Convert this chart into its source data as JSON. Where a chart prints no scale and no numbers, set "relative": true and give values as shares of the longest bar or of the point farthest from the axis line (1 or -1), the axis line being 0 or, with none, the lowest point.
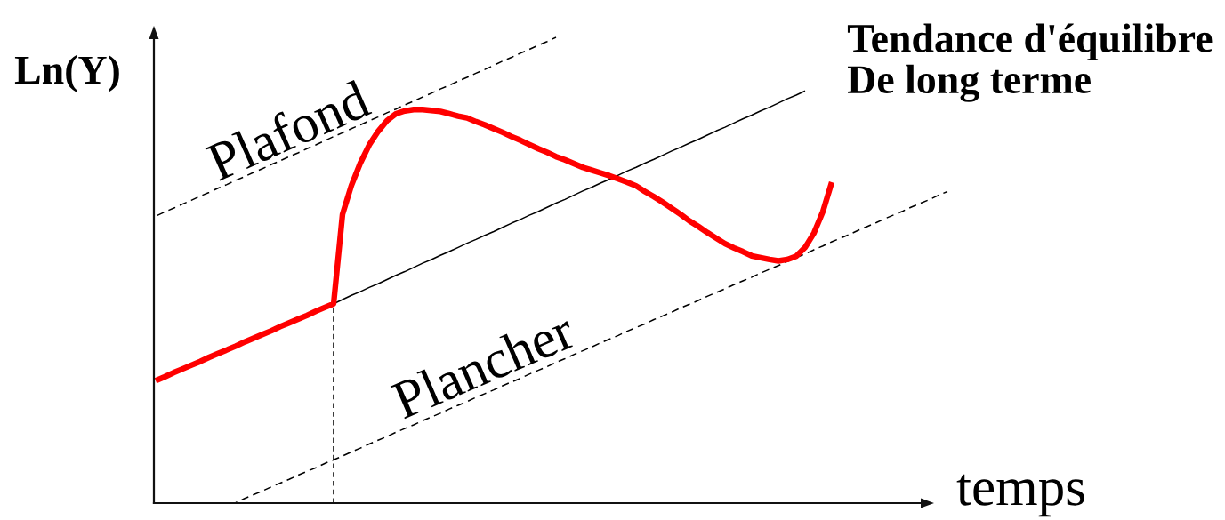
{
  "chart_data": {
    "type": "line",
    "relative": true,
    "xlabel": "temps",
    "ylabel": "Ln(Y)",
    "categories": [
      null,
      null,
      null,
      null,
      null,
      null,
      null,
      null,
      null,
      null,
      null,
      null,
      null,
      null,
      null,
      null,
      null,
      null,
      null,
      null,
      null,
      null,
      null,
      null,
      null,
      null,
      null,
      null,
      null,
      null,
      null,
      null,
      null,
      null,
      null,
      null,
      null,
      null,
      null,
      null,
      null,
      null,
      null,
      null,
      null,
      null,
      null,
      null,
      null,
      null,
      null,
      null,
      null,
      null,
      null,
      null,
      null,
      null,
      null,
      null,
      null,
      null,
      null,
      null,
      null,
      null,
      null,
      null,
      null,
      null,
      null,
      null,
      null,
      null,
      null,
      null,
      null,
      null,
      null,
      null,
      null,
      null,
      null,
      null,
      null,
      null,
      null,
      null,
      null,
      null
    ],
    "series": [
      {
        "color": "#ff0000",
        "line_style": "solid",
        "values": [
          0.263,
          0.271,
          0.28,
          0.288,
          0.296,
          0.304,
          0.313,
          0.321,
          0.329,
          0.337,
          0.346,
          0.354,
          0.362,
          0.37,
          0.379,
          0.387,
          0.395,
          0.403,
          0.412,
          0.42,
          0.428,
          0.62,
          0.682,
          0.73,
          0.769,
          0.798,
          0.821,
          0.836,
          0.842,
          0.845,
          0.845,
          0.843,
          0.841,
          0.836,
          0.831,
          0.827,
          0.819,
          0.812,
          0.804,
          0.796,
          0.787,
          0.779,
          0.77,
          0.761,
          0.753,
          0.744,
          0.737,
          0.729,
          0.721,
          0.715,
          0.709,
          0.703,
          0.696,
          0.689,
          0.681,
          0.669,
          0.658,
          0.646,
          0.633,
          0.62,
          0.606,
          0.594,
          0.581,
          0.569,
          0.557,
          0.548,
          0.54,
          0.531,
          0.527,
          0.523,
          0.52,
          0.523,
          0.53,
          0.549,
          0.58,
          0.626,
          0.689,
          null,
          null,
          null,
          null,
          null,
          null,
          null,
          null,
          null,
          null,
          null,
          null,
          null
        ]
      },
      {
        "name": "Tendance d'équilibre\nDe long terme",
        "color": "#000000",
        "line_style": "solid",
        "values": [
          null,
          null,
          null,
          null,
          null,
          null,
          null,
          null,
          null,
          null,
          null,
          null,
          null,
          null,
          null,
          null,
          null,
          null,
          null,
          null,
          0.428,
          0.437,
          0.446,
          0.454,
          0.463,
          0.471,
          0.48,
          0.489,
          0.497,
          0.506,
          0.515,
          0.523,
          0.532,
          0.54,
          0.549,
          0.558,
          0.566,
          0.575,
          0.583,
          0.592,
          0.601,
          0.609,
          0.618,
          0.626,
          0.635,
          0.644,
          0.652,
          0.661,
          0.67,
          0.678,
          0.687,
          0.695,
          0.704,
          0.713,
          0.721,
          0.73,
          0.738,
          0.747,
          0.756,
          0.764,
          0.773,
          0.781,
          0.79,
          0.799,
          0.807,
          0.816,
          0.825,
          0.833,
          0.842,
          0.85,
          0.859,
          0.868,
          0.876,
          0.885,
          null,
          null,
          null,
          null,
          null,
          null,
          null,
          null,
          null,
          null,
          null,
          null,
          null,
          null,
          null,
          null
        ]
      },
      {
        "name": "Plafond",
        "color": "#000000",
        "line_style": "dashed",
        "values": [
          0.616,
          0.625,
          0.633,
          0.642,
          0.65,
          0.659,
          0.667,
          0.676,
          0.684,
          0.693,
          0.701,
          0.71,
          0.718,
          0.727,
          0.735,
          0.744,
          0.752,
          0.761,
          0.769,
          0.778,
          0.787,
          0.795,
          0.804,
          0.812,
          0.821,
          0.829,
          0.838,
          0.846,
          0.855,
          0.863,
          0.872,
          0.88,
          0.889,
          0.897,
          0.906,
          0.914,
          0.923,
          0.931,
          0.94,
          0.949,
          0.957,
          0.966,
          0.974,
          0.983,
          0.991,
          1.0,
          null,
          null,
          null,
          null,
          null,
          null,
          null,
          null,
          null,
          null,
          null,
          null,
          null,
          null,
          null,
          null,
          null,
          null,
          null,
          null,
          null,
          null,
          null,
          null,
          null,
          null,
          null,
          null,
          null,
          null,
          null,
          null,
          null,
          null,
          null,
          null,
          null,
          null,
          null,
          null,
          null,
          null,
          null,
          null
        ]
      },
      {
        "name": "Plancher",
        "color": "#000000",
        "line_style": "dashed",
        "values": [
          null,
          null,
          null,
          null,
          null,
          null,
          null,
          null,
          null,
          0.001,
          0.01,
          0.018,
          0.026,
          0.035,
          0.043,
          0.051,
          0.06,
          0.068,
          0.076,
          0.085,
          0.093,
          0.101,
          0.11,
          0.118,
          0.127,
          0.135,
          0.143,
          0.152,
          0.16,
          0.168,
          0.177,
          0.185,
          0.193,
          0.202,
          0.21,
          0.218,
          0.227,
          0.235,
          0.243,
          0.252,
          0.26,
          0.268,
          0.277,
          0.285,
          0.293,
          0.302,
          0.31,
          0.319,
          0.327,
          0.335,
          0.344,
          0.352,
          0.36,
          0.369,
          0.377,
          0.385,
          0.394,
          0.402,
          0.41,
          0.419,
          0.427,
          0.435,
          0.444,
          0.452,
          0.46,
          0.469,
          0.477,
          0.485,
          0.494,
          0.502,
          0.51,
          0.519,
          0.527,
          0.535,
          0.544,
          0.552,
          0.561,
          0.569,
          0.577,
          0.586,
          0.594,
          0.602,
          0.611,
          0.619,
          0.627,
          0.636,
          0.644,
          0.652,
          0.661,
          0.669
        ]
      }
    ]
  }
}
